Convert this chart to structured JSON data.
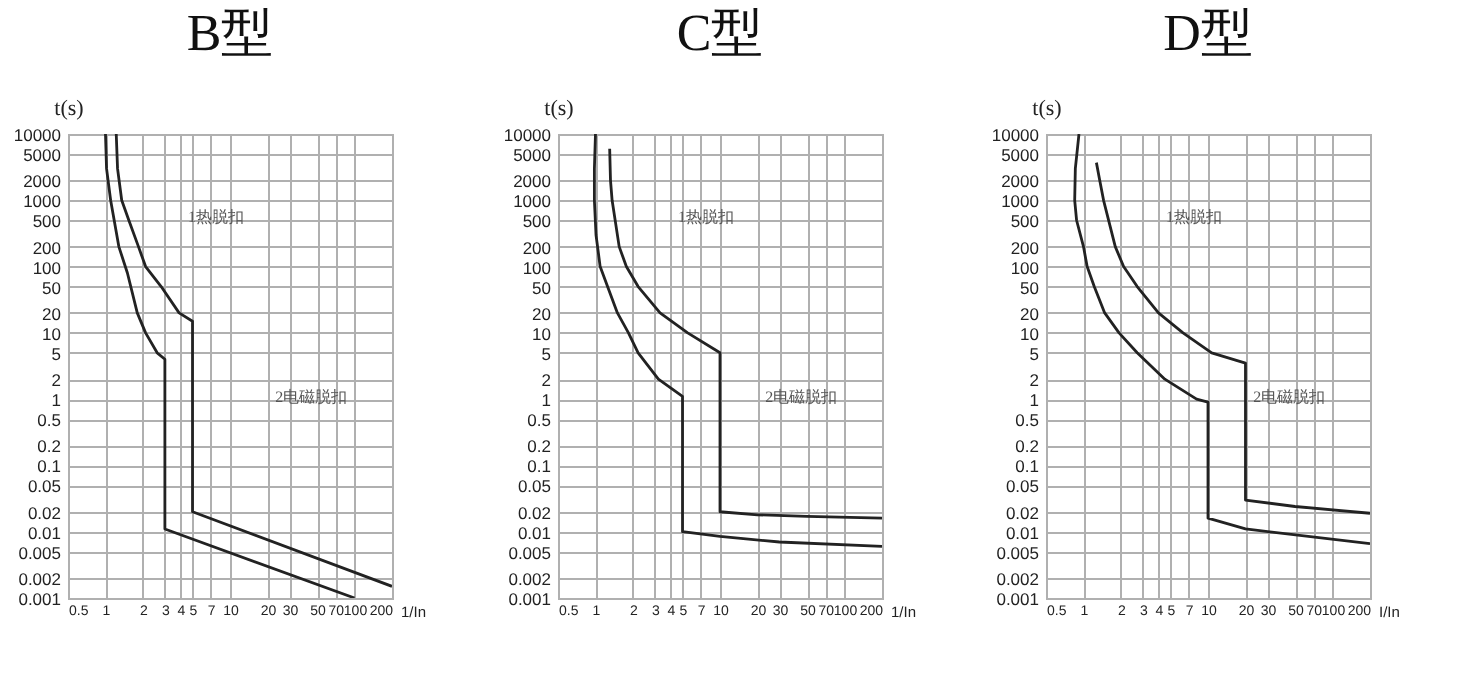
{
  "chart_data": [
    {
      "type": "line",
      "title": "B型",
      "xlabel": "1/In",
      "ylabel": "t(s)",
      "log": "xy",
      "grid": true,
      "xlim": [
        0.5,
        200
      ],
      "ylim": [
        0.001,
        10000
      ],
      "xticks": [
        0.5,
        1,
        2,
        3,
        4,
        5,
        7,
        10,
        20,
        30,
        50,
        70,
        100,
        200
      ],
      "yticks": [
        0.001,
        0.002,
        0.005,
        0.01,
        0.02,
        0.05,
        0.1,
        0.2,
        0.5,
        1,
        2,
        5,
        10,
        20,
        50,
        100,
        200,
        500,
        1000,
        2000,
        5000,
        10000
      ],
      "series": [
        {
          "color": "#222222",
          "x": [
            1,
            1.02,
            1.1,
            1.28,
            1.5,
            1.8,
            2.1,
            2.6,
            3,
            3,
            100
          ],
          "values": [
            10000,
            3000,
            1000,
            200,
            80,
            20,
            10,
            5,
            4,
            0.011,
            0.001
          ]
        },
        {
          "color": "#222222",
          "x": [
            1.22,
            1.25,
            1.35,
            1.54,
            1.84,
            2.1,
            2.8,
            3.9,
            5,
            5,
            200
          ],
          "values": [
            10000,
            3000,
            1000,
            500,
            200,
            100,
            50,
            20,
            15,
            0.02,
            0.0015
          ]
        }
      ],
      "annotations": [
        "1热脱扣",
        "2电磁脱扣"
      ]
    },
    {
      "type": "line",
      "title": "C型",
      "xlabel": "1/In",
      "ylabel": "t(s)",
      "log": "xy",
      "grid": true,
      "xlim": [
        0.5,
        200
      ],
      "ylim": [
        0.001,
        10000
      ],
      "xticks": [
        0.5,
        1,
        2,
        3,
        4,
        5,
        7,
        10,
        20,
        30,
        50,
        70,
        100,
        200
      ],
      "yticks": [
        0.001,
        0.002,
        0.005,
        0.01,
        0.02,
        0.05,
        0.1,
        0.2,
        0.5,
        1,
        2,
        5,
        10,
        20,
        50,
        100,
        200,
        500,
        1000,
        2000,
        5000,
        10000
      ],
      "series": [
        {
          "color": "#222222",
          "x": [
            1,
            0.98,
            0.98,
            1.01,
            1.09,
            1.25,
            1.5,
            1.84,
            2.2,
            3.2,
            5,
            5,
            10,
            30,
            200
          ],
          "values": [
            10000,
            3000,
            1000,
            300,
            100,
            50,
            20,
            10,
            5,
            2,
            1.1,
            0.01,
            0.0085,
            0.007,
            0.006
          ]
        },
        {
          "color": "#222222",
          "x": [
            1.3,
            1.32,
            1.36,
            1.55,
            1.77,
            2.2,
            3.3,
            5.5,
            10,
            10,
            20,
            50,
            200
          ],
          "values": [
            6000,
            2000,
            1000,
            200,
            100,
            50,
            20,
            10,
            5,
            0.02,
            0.018,
            0.017,
            0.016
          ]
        }
      ],
      "annotations": [
        "1热脱扣",
        "2电磁脱扣"
      ]
    },
    {
      "type": "line",
      "title": "D型",
      "xlabel": "I/In",
      "ylabel": "t(s)",
      "log": "xy",
      "grid": true,
      "xlim": [
        0.5,
        200
      ],
      "ylim": [
        0.001,
        10000
      ],
      "xticks": [
        0.5,
        1,
        2,
        3,
        4,
        5,
        7,
        10,
        20,
        30,
        50,
        70,
        100,
        200
      ],
      "yticks": [
        0.001,
        0.002,
        0.005,
        0.01,
        0.02,
        0.05,
        0.1,
        0.2,
        0.5,
        1,
        2,
        5,
        10,
        20,
        50,
        100,
        200,
        500,
        1000,
        2000,
        5000,
        10000
      ],
      "series": [
        {
          "color": "#222222",
          "x": [
            0.92,
            0.86,
            0.85,
            0.88,
            1,
            1.07,
            1.22,
            1.48,
            1.93,
            2.7,
            4.5,
            8.1,
            10,
            10,
            20,
            200
          ],
          "values": [
            10000,
            3000,
            1000,
            500,
            200,
            100,
            50,
            20,
            10,
            5,
            2,
            1,
            0.9,
            0.016,
            0.011,
            0.0066
          ]
        },
        {
          "color": "#222222",
          "x": [
            1.27,
            1.35,
            1.45,
            1.8,
            2.1,
            2.7,
            4,
            6.3,
            10.7,
            20,
            20,
            50,
            200
          ],
          "values": [
            3700,
            2000,
            1000,
            200,
            100,
            50,
            20,
            10,
            5,
            3.5,
            0.03,
            0.024,
            0.019
          ]
        }
      ],
      "annotations": [
        "1热脱扣",
        "2电磁脱扣"
      ]
    }
  ]
}
